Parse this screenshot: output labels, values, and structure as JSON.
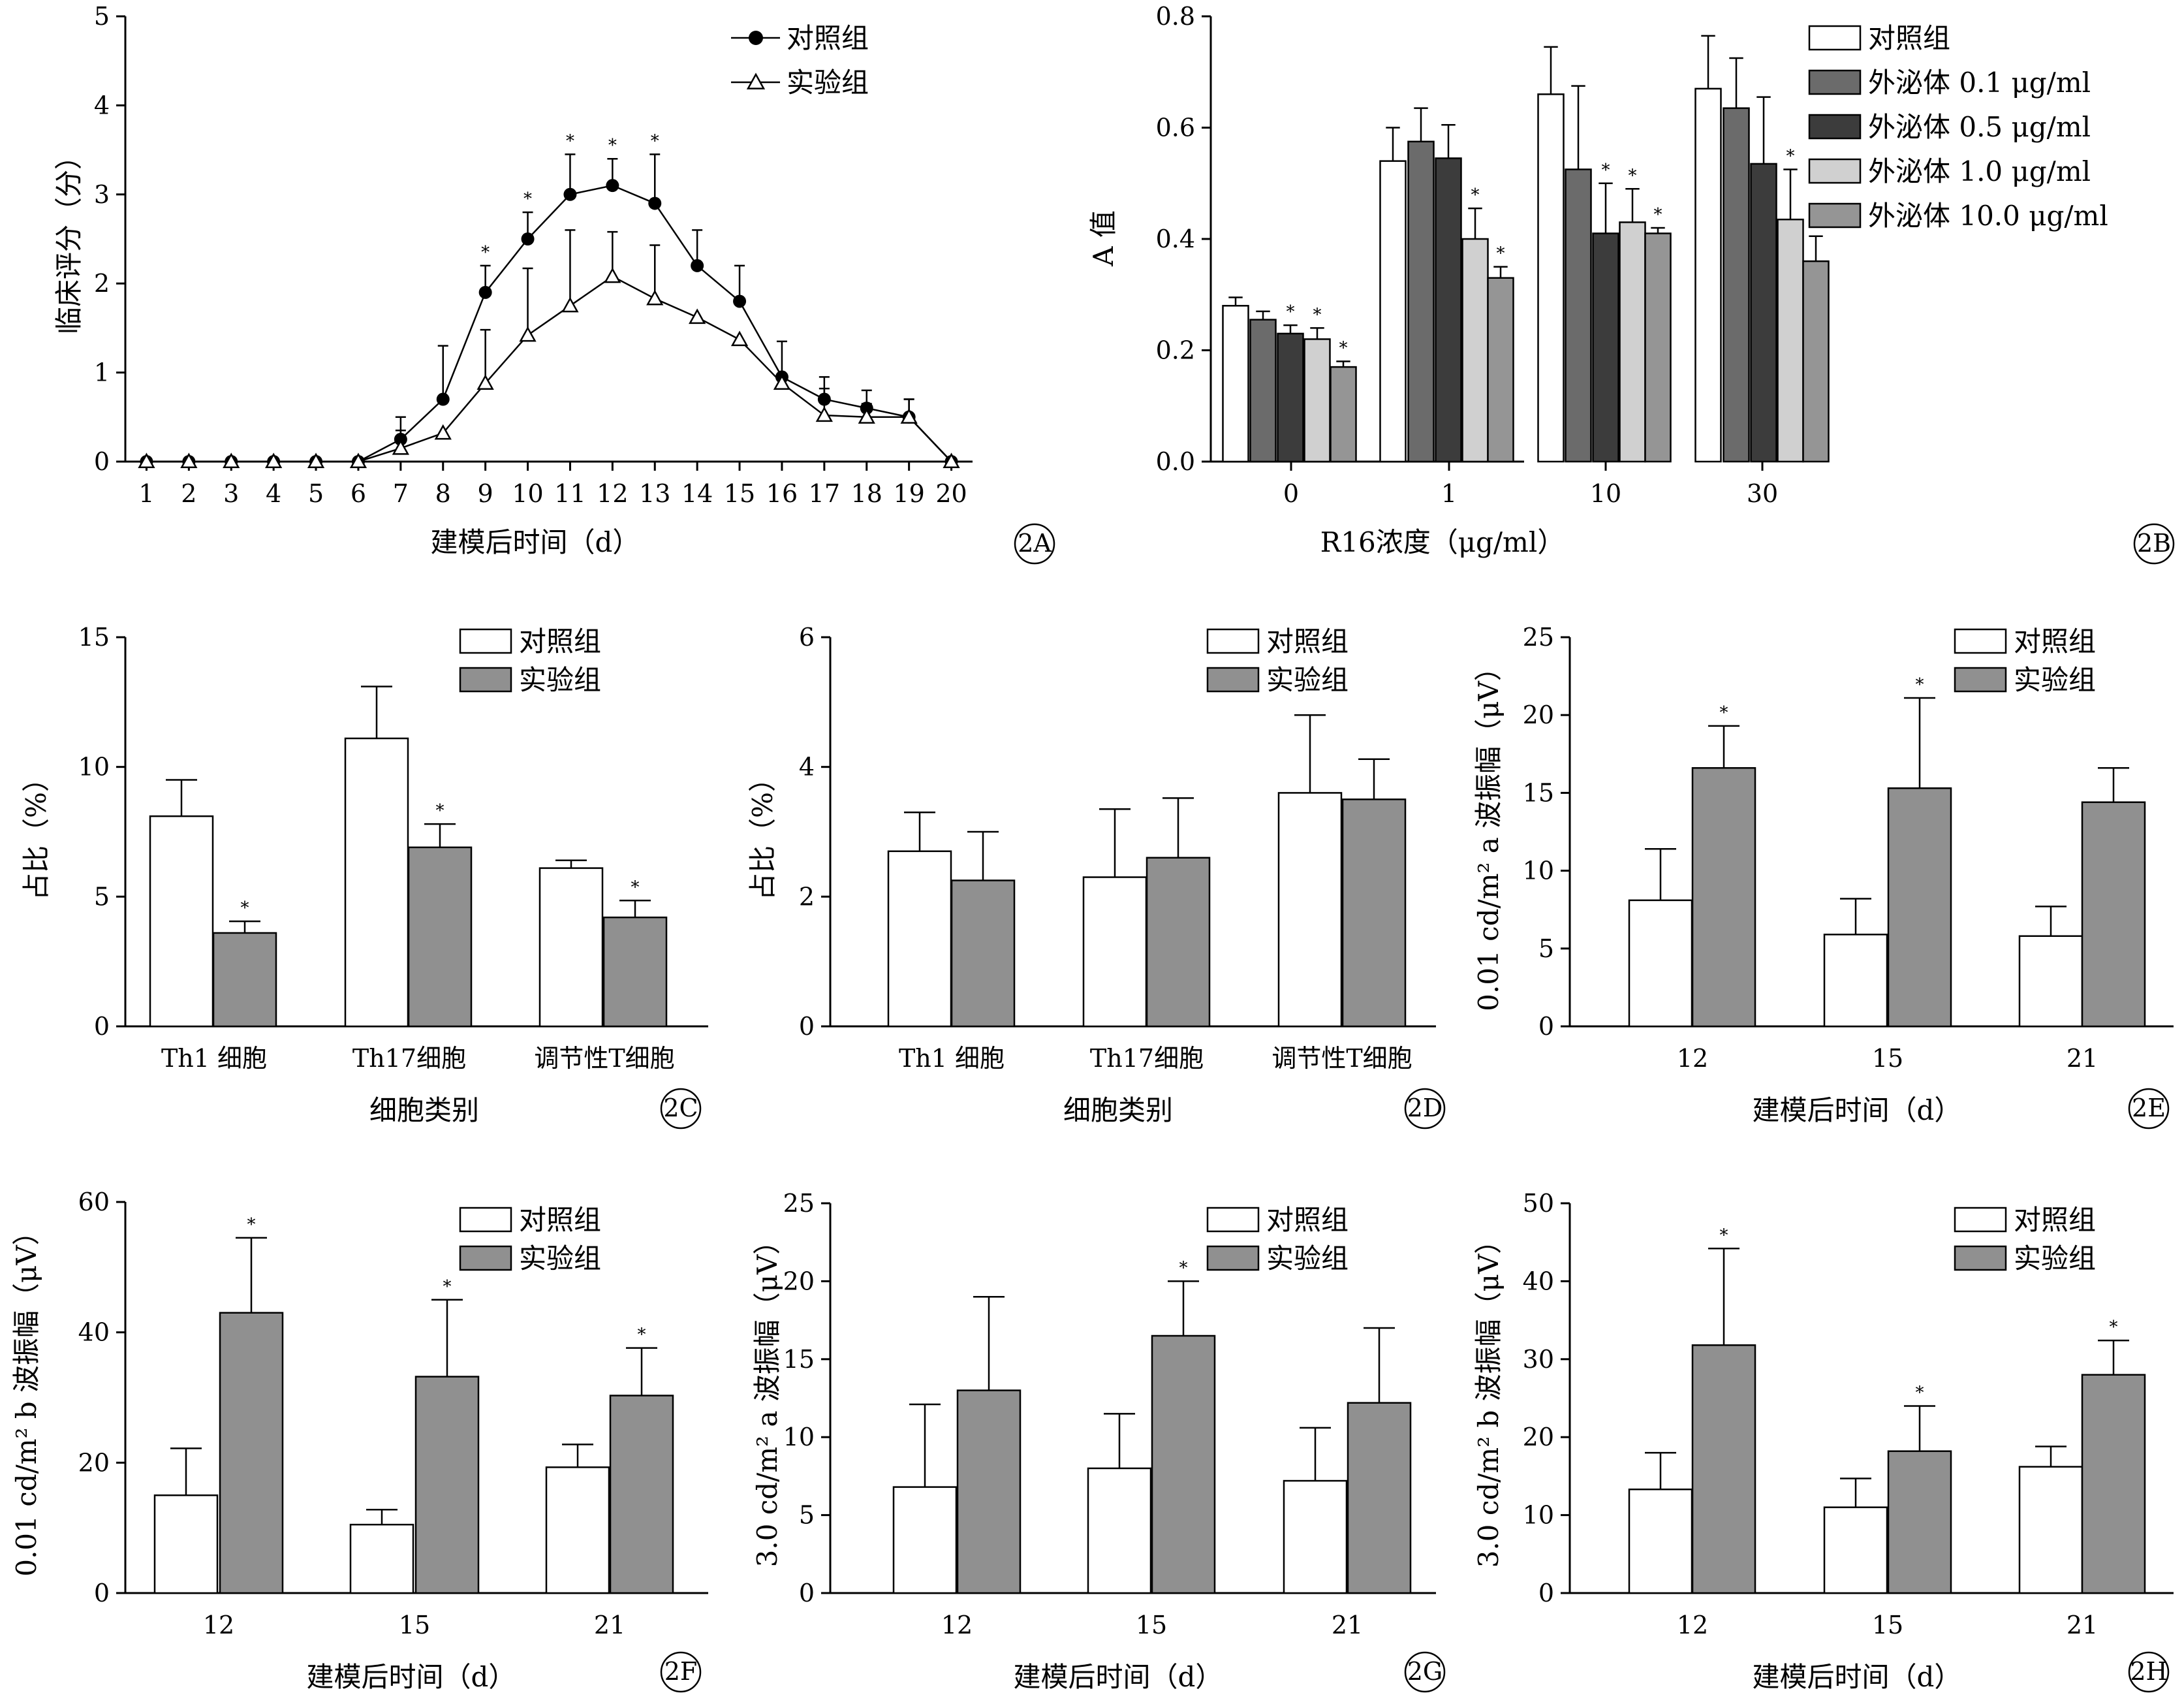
{
  "colors": {
    "control": "#ffffff",
    "exp": "#909090",
    "ex01": "#6b6b6b",
    "ex05": "#3c3c3c",
    "ex10": "#d0d0d0",
    "ex100": "#959595",
    "stroke": "#000000"
  },
  "chart_data": [
    {
      "id": "2A",
      "type": "line",
      "panel_label": "2A",
      "ylabel": "临床评分（分）",
      "xlabel": "建模后时间（d）",
      "ylim": [
        0,
        5
      ],
      "yticks": [
        "0",
        "1",
        "2",
        "3",
        "4",
        "5"
      ],
      "x": [
        "1",
        "2",
        "3",
        "4",
        "5",
        "6",
        "7",
        "8",
        "9",
        "10",
        "11",
        "12",
        "13",
        "14",
        "15",
        "16",
        "17",
        "18",
        "19",
        "20"
      ],
      "legend_position": "top-right",
      "series": [
        {
          "name": "对照组",
          "marker": "circle",
          "values": [
            0,
            0,
            0,
            0,
            0,
            0,
            0.25,
            0.7,
            1.9,
            2.5,
            3.0,
            3.1,
            2.9,
            2.2,
            1.8,
            0.95,
            0.7,
            0.6,
            0.5,
            0
          ],
          "errors": [
            0,
            0,
            0,
            0,
            0,
            0,
            0.25,
            0.6,
            0.3,
            0.3,
            0.45,
            0.3,
            0.55,
            0.4,
            0.4,
            0.4,
            0.25,
            0.2,
            0.2,
            0
          ],
          "stars": [
            false,
            false,
            false,
            false,
            false,
            false,
            false,
            false,
            true,
            true,
            true,
            true,
            true,
            false,
            false,
            false,
            false,
            false,
            false,
            false
          ]
        },
        {
          "name": "实验组",
          "marker": "triangle",
          "values": [
            0,
            0,
            0,
            0,
            0,
            0,
            0.15,
            0.32,
            0.88,
            1.42,
            1.75,
            2.08,
            1.83,
            1.62,
            1.37,
            0.88,
            0.52,
            0.5,
            0.5,
            0
          ],
          "errors": [
            0,
            0,
            0,
            0,
            0,
            0,
            0.2,
            0,
            0.6,
            0.75,
            0.85,
            0.5,
            0.6,
            0,
            0,
            0,
            0.3,
            0.15,
            0.2,
            0
          ]
        }
      ]
    },
    {
      "id": "2B",
      "type": "bar",
      "panel_label": "2B",
      "ylabel": "A 值",
      "xlabel": "R16浓度（μg/ml）",
      "ylim": [
        0,
        0.8
      ],
      "yticks": [
        "0.0",
        "0.2",
        "0.4",
        "0.6",
        "0.8"
      ],
      "categories": [
        "0",
        "1",
        "10",
        "30"
      ],
      "legend_position": "top-right",
      "series": [
        {
          "name": "对照组",
          "color": "#ffffff",
          "values": [
            0.28,
            0.54,
            0.66,
            0.67
          ],
          "errors": [
            0.015,
            0.06,
            0.085,
            0.095
          ],
          "stars": [
            false,
            false,
            false,
            false
          ]
        },
        {
          "name": "外泌体 0.1 μg/ml",
          "color": "#6b6b6b",
          "values": [
            0.255,
            0.575,
            0.525,
            0.635
          ],
          "errors": [
            0.015,
            0.06,
            0.15,
            0.09
          ],
          "stars": [
            false,
            false,
            false,
            false
          ]
        },
        {
          "name": "外泌体 0.5 μg/ml",
          "color": "#3c3c3c",
          "values": [
            0.23,
            0.545,
            0.41,
            0.535
          ],
          "errors": [
            0.015,
            0.06,
            0.09,
            0.12
          ],
          "stars": [
            true,
            false,
            true,
            false
          ]
        },
        {
          "name": "外泌体 1.0 μg/ml",
          "color": "#d0d0d0",
          "values": [
            0.22,
            0.4,
            0.43,
            0.435
          ],
          "errors": [
            0.02,
            0.055,
            0.06,
            0.09
          ],
          "stars": [
            true,
            true,
            true,
            true
          ]
        },
        {
          "name": "外泌体 10.0 μg/ml",
          "color": "#959595",
          "values": [
            0.17,
            0.33,
            0.41,
            0.36
          ],
          "errors": [
            0.01,
            0.02,
            0.01,
            0.045
          ],
          "stars": [
            true,
            true,
            true,
            true
          ]
        }
      ]
    },
    {
      "id": "2C",
      "type": "bar",
      "panel_label": "2C",
      "ylabel": "占比（%）",
      "xlabel": "细胞类别",
      "ylim": [
        0,
        15
      ],
      "yticks": [
        "0",
        "5",
        "10",
        "15"
      ],
      "categories": [
        "Th1 细胞",
        "Th17细胞",
        "调节性T细胞"
      ],
      "legend_position": "top-right",
      "series": [
        {
          "name": "对照组",
          "color": "#ffffff",
          "values": [
            8.1,
            11.1,
            6.1
          ],
          "errors": [
            1.4,
            2.0,
            0.3
          ],
          "stars": [
            false,
            false,
            false
          ]
        },
        {
          "name": "实验组",
          "color": "#909090",
          "values": [
            3.6,
            6.9,
            4.2
          ],
          "errors": [
            0.45,
            0.9,
            0.65
          ],
          "stars": [
            true,
            true,
            true
          ]
        }
      ]
    },
    {
      "id": "2D",
      "type": "bar",
      "panel_label": "2D",
      "ylabel": "占比（%）",
      "xlabel": "细胞类别",
      "ylim": [
        0,
        6
      ],
      "yticks": [
        "0",
        "2",
        "4",
        "6"
      ],
      "categories": [
        "Th1 细胞",
        "Th17细胞",
        "调节性T细胞"
      ],
      "legend_position": "top-right",
      "series": [
        {
          "name": "对照组",
          "color": "#ffffff",
          "values": [
            2.7,
            2.3,
            3.6
          ],
          "errors": [
            0.6,
            1.05,
            1.2
          ],
          "stars": [
            false,
            false,
            false
          ]
        },
        {
          "name": "实验组",
          "color": "#909090",
          "values": [
            2.25,
            2.6,
            3.5
          ],
          "errors": [
            0.75,
            0.92,
            0.62
          ],
          "stars": [
            false,
            false,
            false
          ]
        }
      ]
    },
    {
      "id": "2E",
      "type": "bar",
      "panel_label": "2E",
      "ylabel": "0.01 cd/m² a 波振幅（μV）",
      "xlabel": "建模后时间（d）",
      "ylim": [
        0,
        25
      ],
      "yticks": [
        "0",
        "5",
        "10",
        "15",
        "20",
        "25"
      ],
      "categories": [
        "12",
        "15",
        "21"
      ],
      "legend_position": "top-right",
      "series": [
        {
          "name": "对照组",
          "color": "#ffffff",
          "values": [
            8.1,
            5.9,
            5.8
          ],
          "errors": [
            3.3,
            2.3,
            1.9
          ],
          "stars": [
            false,
            false,
            false
          ]
        },
        {
          "name": "实验组",
          "color": "#909090",
          "values": [
            16.6,
            15.3,
            14.4
          ],
          "errors": [
            2.7,
            5.8,
            2.2
          ],
          "stars": [
            true,
            true,
            false
          ]
        }
      ]
    },
    {
      "id": "2F",
      "type": "bar",
      "panel_label": "2F",
      "ylabel": "0.01 cd/m² b 波振幅（μV）",
      "xlabel": "建模后时间（d）",
      "ylim": [
        0,
        60
      ],
      "yticks": [
        "0",
        "20",
        "40",
        "60"
      ],
      "categories": [
        "12",
        "15",
        "21"
      ],
      "legend_position": "top-right",
      "series": [
        {
          "name": "对照组",
          "color": "#ffffff",
          "values": [
            15,
            10.5,
            19.3
          ],
          "errors": [
            7.2,
            2.3,
            3.5
          ],
          "stars": [
            false,
            false,
            false
          ]
        },
        {
          "name": "实验组",
          "color": "#909090",
          "values": [
            43,
            33.2,
            30.3
          ],
          "errors": [
            11.5,
            11.8,
            7.3
          ],
          "stars": [
            true,
            true,
            true
          ]
        }
      ]
    },
    {
      "id": "2G",
      "type": "bar",
      "panel_label": "2G",
      "ylabel": "3.0 cd/m² a 波振幅（μV）",
      "xlabel": "建模后时间（d）",
      "ylim": [
        0,
        25
      ],
      "yticks": [
        "0",
        "5",
        "10",
        "15",
        "20",
        "25"
      ],
      "categories": [
        "12",
        "15",
        "21"
      ],
      "legend_position": "top-right",
      "series": [
        {
          "name": "对照组",
          "color": "#ffffff",
          "values": [
            6.8,
            8,
            7.2
          ],
          "errors": [
            5.3,
            3.5,
            3.4
          ],
          "stars": [
            false,
            false,
            false
          ]
        },
        {
          "name": "实验组",
          "color": "#909090",
          "values": [
            13,
            16.5,
            12.2
          ],
          "errors": [
            6,
            3.5,
            4.8
          ],
          "stars": [
            false,
            true,
            false
          ]
        }
      ]
    },
    {
      "id": "2H",
      "type": "bar",
      "panel_label": "2H",
      "ylabel": "3.0 cd/m² b 波振幅（μV）",
      "xlabel": "建模后时间（d）",
      "ylim": [
        0,
        50
      ],
      "yticks": [
        "0",
        "10",
        "20",
        "30",
        "40",
        "50"
      ],
      "categories": [
        "12",
        "15",
        "21"
      ],
      "legend_position": "top-right",
      "series": [
        {
          "name": "对照组",
          "color": "#ffffff",
          "values": [
            13.3,
            11,
            16.2
          ],
          "errors": [
            4.7,
            3.7,
            2.6
          ],
          "stars": [
            false,
            false,
            false
          ]
        },
        {
          "name": "实验组",
          "color": "#909090",
          "values": [
            31.8,
            18.2,
            28
          ],
          "errors": [
            12.4,
            5.8,
            4.4
          ],
          "stars": [
            true,
            true,
            true
          ]
        }
      ]
    }
  ]
}
